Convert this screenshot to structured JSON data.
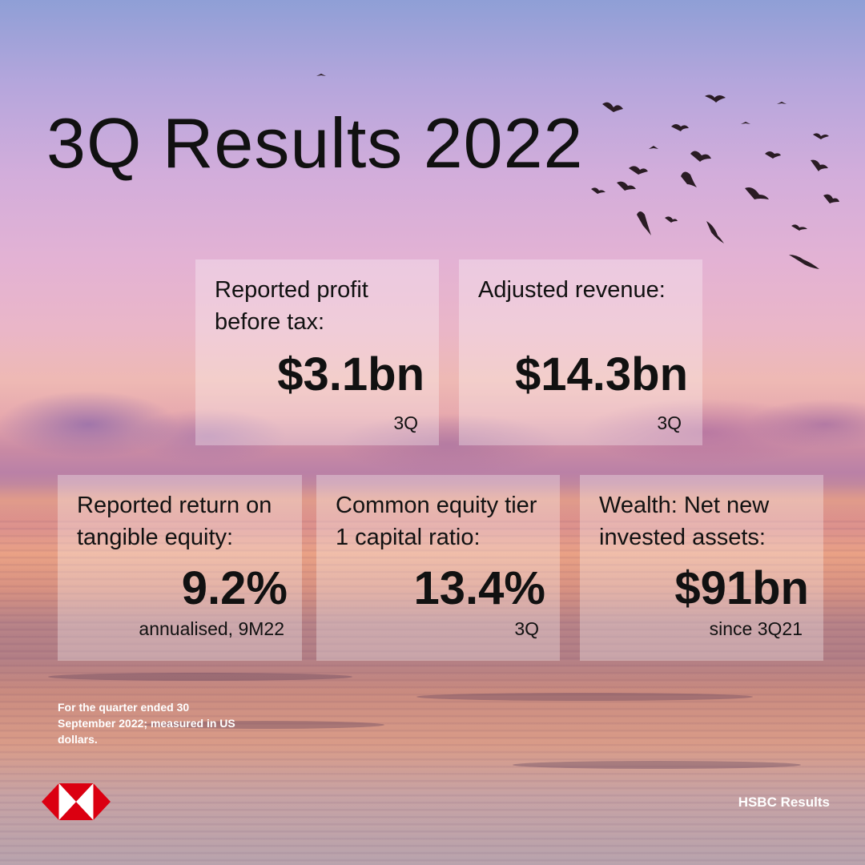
{
  "title": "3Q Results 2022",
  "cards": {
    "profit": {
      "label": "Reported profit before tax:",
      "value": "$3.1bn",
      "note": "3Q"
    },
    "revenue": {
      "label": "Adjusted revenue:",
      "value": "$14.3bn",
      "note": "3Q"
    },
    "rote": {
      "label": "Reported return on tangible equity:",
      "value": "9.2%",
      "note": "annualised, 9M22"
    },
    "cet1": {
      "label": "Common equity tier 1 capital ratio:",
      "value": "13.4%",
      "note": "3Q"
    },
    "wealth": {
      "label": "Wealth: Net new invested assets:",
      "value": "$91bn",
      "note": "since 3Q21"
    }
  },
  "footnote": "For the quarter ended 30 September 2022; measured in US dollars.",
  "brand": "HSBC Results",
  "colors": {
    "logo_red": "#db0011",
    "text": "#111111"
  },
  "icons": {
    "logo": "hsbc-hexagon-logo",
    "birds": "flying-birds"
  }
}
